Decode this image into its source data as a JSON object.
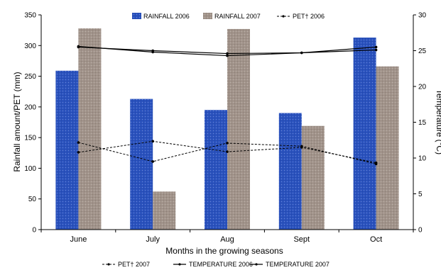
{
  "chart_data": {
    "type": "bar",
    "title": "",
    "xlabel": "Months in the growing seasons",
    "ylabel": "Rainfall amount/PET (mm)",
    "y2label": "Temperature (°C)",
    "categories": [
      "June",
      "July",
      "Aug",
      "Sept",
      "Oct"
    ],
    "ylim": [
      0,
      350
    ],
    "y2lim": [
      0,
      30
    ],
    "yticks": [
      0,
      50,
      100,
      150,
      200,
      250,
      300,
      350
    ],
    "y2ticks": [
      0,
      5,
      10,
      15,
      20,
      25,
      30
    ],
    "grid": false,
    "bar_series": [
      {
        "name": "RAINFALL 2006",
        "values": [
          259,
          213,
          195,
          190,
          313
        ],
        "color": "#2a52be"
      },
      {
        "name": "RAINFALL 2007",
        "values": [
          328,
          62,
          327,
          169,
          266
        ],
        "color": "#a1938a"
      }
    ],
    "line_series": [
      {
        "name": "PET† 2006",
        "axis": "left",
        "values": [
          142,
          111,
          141,
          136,
          107
        ],
        "style": "dashed"
      },
      {
        "name": "PET† 2007",
        "axis": "left",
        "values": [
          126,
          144,
          127,
          134,
          109
        ],
        "style": "dashed"
      },
      {
        "name": "TEMPERATURE 2006",
        "axis": "right",
        "values": [
          25.5,
          25.0,
          24.6,
          24.7,
          25.5
        ],
        "style": "solid"
      },
      {
        "name": "TEMPERATURE 2007",
        "axis": "right",
        "values": [
          25.6,
          24.8,
          24.3,
          24.7,
          25.1
        ],
        "style": "solid"
      }
    ]
  }
}
